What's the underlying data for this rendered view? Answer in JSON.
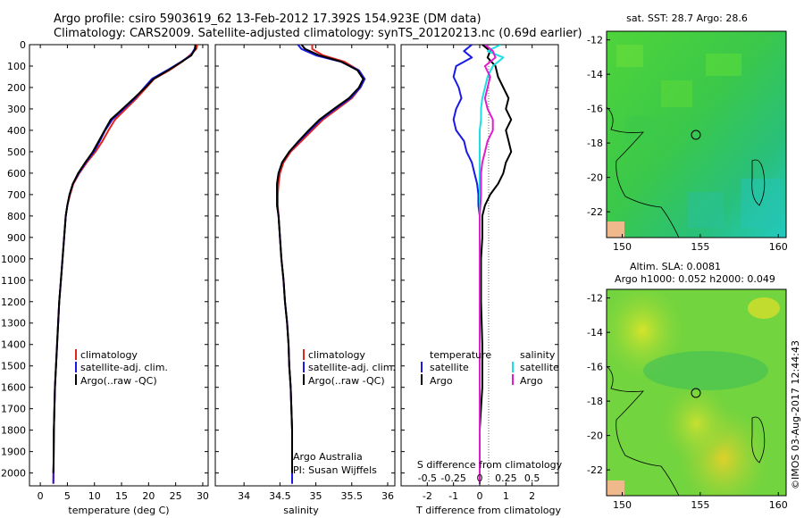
{
  "header": {
    "line1": "Argo profile: csiro 5903619_62 13-Feb-2012 17.392S 154.923E (DM data)",
    "line2": "Climatology: CARS2009. Satellite-adjusted climatology: synTS_20120213.nc (0.69d earlier)"
  },
  "colors": {
    "climatology": "#e8231c",
    "satellite": "#1a1ae6",
    "argo": "#000000",
    "argo_salinity": "#e01ccd",
    "satellite_salinity": "#1ae0e6"
  },
  "depth_axis": {
    "ticks": [
      0,
      100,
      200,
      300,
      400,
      500,
      600,
      700,
      800,
      900,
      1000,
      1100,
      1200,
      1300,
      1400,
      1500,
      1600,
      1700,
      1800,
      1900,
      2000
    ],
    "range": [
      0,
      2060
    ]
  },
  "chart_data": [
    {
      "type": "line",
      "id": "temperature",
      "xlabel": "temperature (deg C)",
      "ylabel": "",
      "xlim": [
        -2,
        31
      ],
      "ylim": [
        2060,
        0
      ],
      "xticks": [
        0,
        5,
        10,
        15,
        20,
        25,
        30
      ],
      "legend": [
        "climatology",
        "satellite-adj. clim.",
        "Argo(..raw -QC)"
      ],
      "series": [
        {
          "name": "climatology",
          "color": "#e8231c",
          "x": [
            29.0,
            28.8,
            27.6,
            26.2,
            23.8,
            21.0,
            19.6,
            17.8,
            15.8,
            13.8,
            12.6,
            11.5,
            10.2,
            8.6,
            7.2,
            6.1,
            5.5,
            5.0,
            4.7,
            4.4,
            4.1,
            3.8,
            3.5,
            3.3,
            3.1,
            2.9,
            2.7,
            2.6,
            2.5,
            2.45,
            2.4
          ],
          "y": [
            0,
            20,
            50,
            80,
            120,
            160,
            200,
            250,
            300,
            350,
            400,
            450,
            500,
            550,
            600,
            650,
            700,
            750,
            800,
            900,
            1000,
            1100,
            1200,
            1300,
            1400,
            1500,
            1600,
            1700,
            1800,
            1950,
            2050
          ]
        },
        {
          "name": "satellite-adj. clim.",
          "color": "#1a1ae6",
          "x": [
            28.7,
            28.5,
            27.8,
            26.0,
            23.4,
            20.6,
            19.2,
            17.5,
            15.4,
            13.3,
            12.0,
            11.0,
            9.9,
            8.4,
            7.1,
            6.0,
            5.4,
            5.0,
            4.7,
            4.4,
            4.1,
            3.8,
            3.5,
            3.3,
            3.1,
            2.9,
            2.7,
            2.6,
            2.5,
            2.45,
            2.4
          ],
          "y": [
            0,
            20,
            50,
            80,
            120,
            160,
            200,
            250,
            300,
            350,
            400,
            450,
            500,
            550,
            600,
            650,
            700,
            750,
            800,
            900,
            1000,
            1100,
            1200,
            1300,
            1400,
            1500,
            1600,
            1700,
            1800,
            1950,
            2050
          ]
        },
        {
          "name": "Argo(..raw -QC)",
          "color": "#000000",
          "x": [
            28.6,
            28.6,
            27.9,
            26.1,
            23.6,
            20.9,
            19.4,
            17.3,
            15.2,
            13.0,
            11.9,
            10.8,
            9.7,
            8.3,
            7.0,
            6.0,
            5.4,
            5.0,
            4.7,
            4.4,
            4.1,
            3.8,
            3.5,
            3.3,
            3.1,
            2.9,
            2.7,
            2.6,
            2.5,
            2.45,
            2.4
          ],
          "y": [
            0,
            20,
            50,
            80,
            120,
            160,
            200,
            250,
            300,
            350,
            400,
            450,
            500,
            550,
            600,
            650,
            700,
            750,
            800,
            900,
            1000,
            1100,
            1200,
            1300,
            1400,
            1500,
            1600,
            1700,
            1800,
            1950,
            2000
          ]
        }
      ]
    },
    {
      "type": "line",
      "id": "salinity",
      "xlabel": "salinity",
      "xlim": [
        33.6,
        36.1
      ],
      "ylim": [
        2060,
        0
      ],
      "xticks": [
        34,
        34.5,
        35,
        35.5,
        36
      ],
      "xticklabels": [
        "34",
        "34.5",
        "35",
        "35.5",
        "36"
      ],
      "legend": [
        "climatology",
        "satellite-adj. clim.",
        "Argo(..raw -QC)"
      ],
      "annotation": [
        "Argo Australia",
        "PI: Susan Wijffels"
      ],
      "series": [
        {
          "name": "climatology",
          "color": "#e8231c",
          "x": [
            34.95,
            34.95,
            35.1,
            35.4,
            35.6,
            35.68,
            35.62,
            35.5,
            35.3,
            35.1,
            34.95,
            34.8,
            34.65,
            34.55,
            34.5,
            34.48,
            34.47,
            34.47,
            34.48,
            34.5,
            34.52,
            34.55,
            34.57,
            34.6,
            34.62,
            34.63,
            34.65,
            34.66,
            34.67,
            34.67
          ],
          "y": [
            0,
            20,
            50,
            80,
            120,
            160,
            200,
            250,
            300,
            350,
            400,
            450,
            500,
            550,
            600,
            650,
            700,
            750,
            800,
            900,
            1000,
            1100,
            1200,
            1300,
            1400,
            1500,
            1600,
            1700,
            1800,
            2050
          ]
        },
        {
          "name": "satellite-adj. clim.",
          "color": "#1a1ae6",
          "x": [
            34.75,
            34.8,
            35.0,
            35.35,
            35.6,
            35.68,
            35.62,
            35.48,
            35.27,
            35.07,
            34.92,
            34.77,
            34.63,
            34.53,
            34.48,
            34.46,
            34.46,
            34.46,
            34.48,
            34.5,
            34.52,
            34.55,
            34.57,
            34.6,
            34.62,
            34.63,
            34.65,
            34.66,
            34.67,
            34.67
          ],
          "y": [
            0,
            20,
            50,
            80,
            120,
            160,
            200,
            250,
            300,
            350,
            400,
            450,
            500,
            550,
            600,
            650,
            700,
            750,
            800,
            900,
            1000,
            1100,
            1200,
            1300,
            1400,
            1500,
            1600,
            1700,
            1800,
            2050
          ]
        },
        {
          "name": "Argo(..raw -QC)",
          "color": "#000000",
          "x": [
            34.8,
            34.85,
            35.05,
            35.36,
            35.58,
            35.66,
            35.6,
            35.46,
            35.25,
            35.05,
            34.9,
            34.76,
            34.63,
            34.53,
            34.48,
            34.46,
            34.46,
            34.46,
            34.48,
            34.5,
            34.52,
            34.55,
            34.57,
            34.6,
            34.62,
            34.63,
            34.65,
            34.66,
            34.67,
            34.67
          ],
          "y": [
            0,
            20,
            50,
            80,
            120,
            160,
            200,
            250,
            300,
            350,
            400,
            450,
            500,
            550,
            600,
            650,
            700,
            750,
            800,
            900,
            1000,
            1100,
            1200,
            1300,
            1400,
            1500,
            1600,
            1700,
            1800,
            2000
          ]
        }
      ]
    },
    {
      "type": "line",
      "id": "difference",
      "xlabel": "T difference from climatology",
      "xlabel_top": "S difference from climatology",
      "xlim": [
        -3,
        3
      ],
      "ylim": [
        2060,
        0
      ],
      "xticks": [
        -2,
        -1,
        0,
        1,
        2
      ],
      "s_ticklabels": [
        "-0.5",
        "-0.25",
        "0",
        "0.25",
        "0.5"
      ],
      "legend_temperature": {
        "title": "temperature",
        "items": [
          "satellite",
          "Argo"
        ]
      },
      "legend_salinity": {
        "title": "salinity",
        "items": [
          "satellite",
          "Argo"
        ]
      },
      "series": [
        {
          "name": "T satellite",
          "color": "#1a1ae6",
          "x": [
            -0.3,
            -0.6,
            -0.3,
            -0.9,
            -1.0,
            -0.8,
            -0.7,
            -0.9,
            -1.0,
            -0.9,
            -0.6,
            -0.5,
            -0.3,
            -0.2,
            -0.1,
            -0.05,
            -0.05,
            0,
            0,
            0,
            0,
            0,
            0,
            0,
            0,
            0
          ],
          "y": [
            0,
            30,
            60,
            100,
            150,
            200,
            250,
            300,
            350,
            400,
            450,
            500,
            550,
            600,
            650,
            700,
            750,
            800,
            900,
            1000,
            1200,
            1400,
            1600,
            1800,
            1950,
            2050
          ]
        },
        {
          "name": "T Argo",
          "color": "#000000",
          "x": [
            0.1,
            0.4,
            0.3,
            0.6,
            0.7,
            0.9,
            1.1,
            1.0,
            1.2,
            1.0,
            1.1,
            1.2,
            1.0,
            0.9,
            0.7,
            0.4,
            0.2,
            0.1,
            0.1,
            0.05,
            0.05,
            0.1,
            0.1,
            0,
            0,
            0
          ],
          "y": [
            0,
            30,
            60,
            100,
            150,
            200,
            250,
            300,
            350,
            400,
            450,
            500,
            550,
            600,
            650,
            700,
            750,
            800,
            900,
            1000,
            1200,
            1400,
            1600,
            1800,
            1950,
            2000
          ]
        },
        {
          "name": "S satellite",
          "color": "#1ae0e6",
          "x": [
            0.8,
            0.3,
            0.9,
            0.5,
            0.3,
            0.2,
            0.1,
            0.05,
            0.05,
            0,
            0,
            0,
            0,
            0,
            0,
            0,
            0,
            0,
            0,
            0,
            0,
            0,
            0,
            0,
            0
          ],
          "y": [
            0,
            30,
            60,
            100,
            150,
            200,
            250,
            300,
            350,
            400,
            450,
            500,
            550,
            600,
            700,
            800,
            900,
            1000,
            1200,
            1400,
            1600,
            1800,
            1900,
            2000,
            2050
          ]
        },
        {
          "name": "S Argo",
          "color": "#e01ccd",
          "x": [
            0.2,
            0.5,
            0.6,
            0.2,
            0.4,
            0.3,
            0.2,
            0.3,
            0.5,
            0.5,
            0.3,
            0.2,
            0.1,
            0.05,
            0.05,
            0,
            0,
            0,
            0,
            0,
            0,
            0,
            0,
            0,
            0
          ],
          "y": [
            0,
            30,
            60,
            100,
            150,
            200,
            250,
            300,
            350,
            400,
            450,
            500,
            550,
            600,
            700,
            800,
            900,
            1000,
            1200,
            1400,
            1600,
            1800,
            1900,
            2000,
            2050
          ]
        }
      ]
    },
    {
      "type": "heatmap",
      "id": "sst_map",
      "title": "sat. SST: 28.7  Argo: 28.6",
      "xlim": [
        149,
        160.5
      ],
      "ylim": [
        -23.5,
        -11.5
      ],
      "xticks": [
        150,
        155,
        160
      ],
      "yticks": [
        -12,
        -14,
        -16,
        -18,
        -20,
        -22
      ],
      "float_position": [
        154.923,
        -17.392
      ]
    },
    {
      "type": "heatmap",
      "id": "sla_map",
      "title": "Altim. SLA: 0.0081",
      "subtitle": "Argo h1000: 0.052 h2000: 0.049",
      "xlim": [
        149,
        160.5
      ],
      "ylim": [
        -23.5,
        -11.5
      ],
      "xticks": [
        150,
        155,
        160
      ],
      "yticks": [
        -12,
        -14,
        -16,
        -18,
        -20,
        -22
      ],
      "float_position": [
        154.923,
        -17.392
      ]
    }
  ],
  "credit": "©IMOS 03-Aug-2017 12:44:43"
}
